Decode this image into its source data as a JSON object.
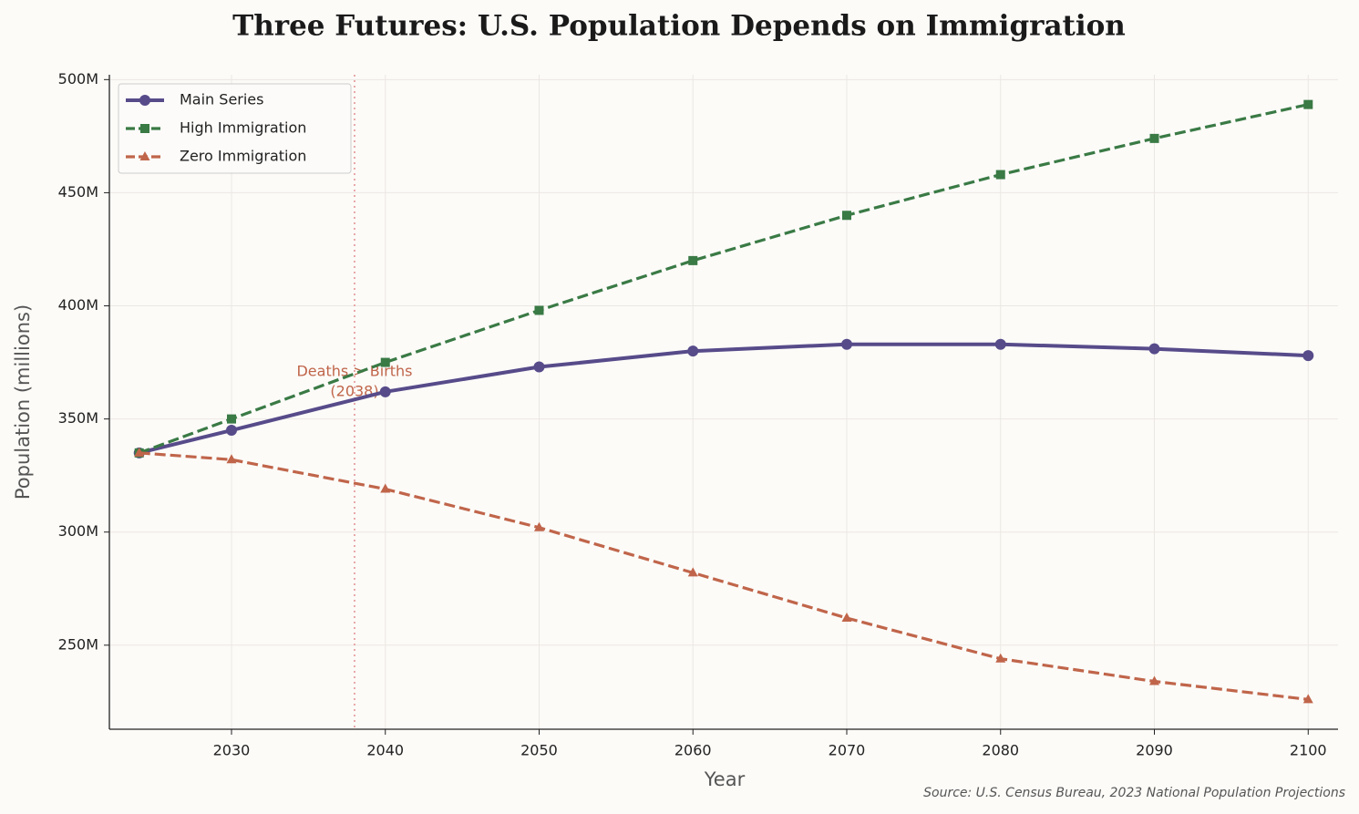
{
  "chart_data": {
    "type": "line",
    "title": "Three Futures: U.S. Population Depends on Immigration",
    "xlabel": "Year",
    "ylabel": "Population (millions)",
    "source": "Source: U.S. Census Bureau, 2023 National Population Projections",
    "x": [
      2024,
      2030,
      2040,
      2050,
      2060,
      2070,
      2080,
      2090,
      2100
    ],
    "series": [
      {
        "name": "Main Series",
        "color": "#574b8a",
        "marker": "circle",
        "dash": "solid",
        "values": [
          335,
          345,
          362,
          373,
          380,
          383,
          383,
          381,
          378
        ]
      },
      {
        "name": "High Immigration",
        "color": "#3a7a45",
        "marker": "square",
        "dash": "dashed",
        "values": [
          335,
          350,
          375,
          398,
          420,
          440,
          458,
          474,
          489
        ]
      },
      {
        "name": "Zero Immigration",
        "color": "#c0654a",
        "marker": "triangle",
        "dash": "dashed",
        "values": [
          335,
          332,
          319,
          302,
          282,
          262,
          244,
          234,
          226
        ]
      }
    ],
    "annotation": {
      "x": 2038,
      "lines": [
        "Deaths > Births",
        "(2038)"
      ],
      "color": "#c0654a"
    },
    "xlim": [
      2022.06,
      2101.94
    ],
    "ylim": [
      212.85,
      502.15
    ],
    "xticks": [
      2030,
      2040,
      2050,
      2060,
      2070,
      2080,
      2090,
      2100
    ],
    "yticks": [
      {
        "value": 250,
        "label": "250M"
      },
      {
        "value": 300,
        "label": "300M"
      },
      {
        "value": 350,
        "label": "350M"
      },
      {
        "value": 400,
        "label": "400M"
      },
      {
        "value": 450,
        "label": "450M"
      },
      {
        "value": 500,
        "label": "500M"
      }
    ],
    "grid": true,
    "legend": "upper left"
  }
}
